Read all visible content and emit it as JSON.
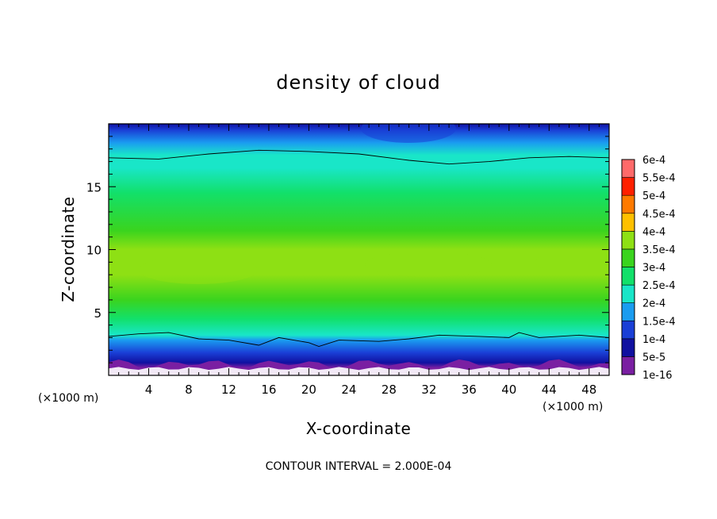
{
  "chart_data": {
    "type": "heatmap",
    "title": "density of cloud",
    "xlabel": "X-coordinate",
    "ylabel": "Z-coordinate",
    "x_unit": "(×1000 m)",
    "xlim": [
      0,
      50
    ],
    "ylim": [
      0,
      20
    ],
    "x_ticks": [
      4,
      8,
      12,
      16,
      20,
      24,
      28,
      32,
      36,
      40,
      44,
      48
    ],
    "y_ticks": [
      5,
      10,
      15
    ],
    "colorbar": {
      "levels": [
        "1e-16",
        "5e-5",
        "1e-4",
        "1.5e-4",
        "2e-4",
        "2.5e-4",
        "3e-4",
        "3.5e-4",
        "4e-4",
        "4.5e-4",
        "5e-4",
        "5.5e-4",
        "6e-4"
      ],
      "colors": [
        "#7a1fa2",
        "#1010a0",
        "#1a3fd6",
        "#1a9cf0",
        "#19e6c8",
        "#12e06a",
        "#3ad41e",
        "#8ee014",
        "#ffc000",
        "#ff7a00",
        "#ff2000",
        "#ff6a6a",
        "#ffc0c0"
      ]
    },
    "vertical_profile": [
      {
        "z": 0.0,
        "value": 0
      },
      {
        "z": 0.6,
        "value": 0
      },
      {
        "z": 1.0,
        "value": 5e-05
      },
      {
        "z": 1.8,
        "value": 0.0001
      },
      {
        "z": 2.8,
        "value": 0.00015
      },
      {
        "z": 3.2,
        "value": 0.0002
      },
      {
        "z": 4.5,
        "value": 0.00025
      },
      {
        "z": 6.0,
        "value": 0.0003
      },
      {
        "z": 8.0,
        "value": 0.00036
      },
      {
        "z": 10.0,
        "value": 0.00035
      },
      {
        "z": 11.5,
        "value": 0.0003
      },
      {
        "z": 14.5,
        "value": 0.00025
      },
      {
        "z": 16.5,
        "value": 0.00022
      },
      {
        "z": 17.5,
        "value": 0.0002
      },
      {
        "z": 18.5,
        "value": 0.00015
      },
      {
        "z": 19.5,
        "value": 0.0001
      },
      {
        "z": 20.0,
        "value": 8e-05
      }
    ],
    "contours": [
      {
        "level": "2e-4",
        "points": [
          [
            0,
            17.3
          ],
          [
            5,
            17.2
          ],
          [
            10,
            17.6
          ],
          [
            15,
            17.9
          ],
          [
            20,
            17.8
          ],
          [
            25,
            17.6
          ],
          [
            30,
            17.1
          ],
          [
            34,
            16.8
          ],
          [
            38,
            17.0
          ],
          [
            42,
            17.3
          ],
          [
            46,
            17.4
          ],
          [
            50,
            17.3
          ]
        ]
      },
      {
        "level": "1.5e-4",
        "points": [
          [
            0,
            3.1
          ],
          [
            3,
            3.3
          ],
          [
            6,
            3.4
          ],
          [
            9,
            2.9
          ],
          [
            12,
            2.8
          ],
          [
            15,
            2.4
          ],
          [
            17,
            3.0
          ],
          [
            20,
            2.6
          ],
          [
            21,
            2.3
          ],
          [
            23,
            2.8
          ],
          [
            27,
            2.7
          ],
          [
            30,
            2.9
          ],
          [
            33,
            3.2
          ],
          [
            37,
            3.1
          ],
          [
            40,
            3.0
          ],
          [
            41,
            3.4
          ],
          [
            43,
            3.0
          ],
          [
            47,
            3.2
          ],
          [
            50,
            3.0
          ]
        ]
      }
    ]
  },
  "annotation": "CONTOUR INTERVAL = 2.000E-04"
}
